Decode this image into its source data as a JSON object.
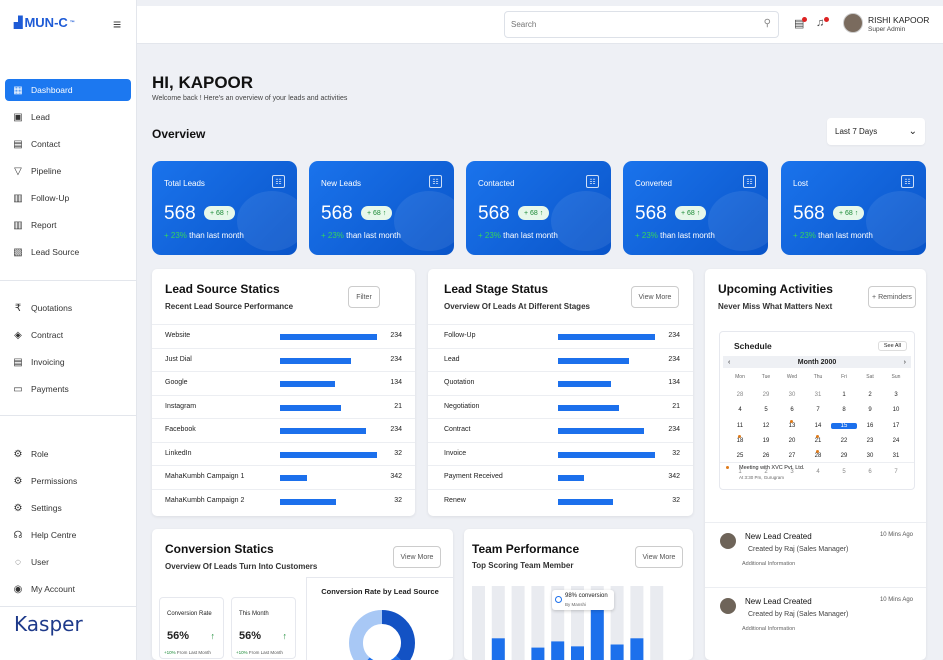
{
  "app": {
    "logo": "MUN-C",
    "logo_tm": "™"
  },
  "sidebar": {
    "groups": [
      [
        {
          "label": "Dashboard",
          "icon": "grid-icon"
        },
        {
          "label": "Lead",
          "icon": "contact-card-icon"
        },
        {
          "label": "Contact",
          "icon": "contact-book-icon"
        },
        {
          "label": "Pipeline",
          "icon": "filter-icon"
        },
        {
          "label": "Follow-Up",
          "icon": "clipboard-icon"
        },
        {
          "label": "Report",
          "icon": "chart-icon"
        },
        {
          "label": "Lead Source",
          "icon": "form-icon"
        }
      ],
      [
        {
          "label": "Quotations",
          "icon": "rupee-icon"
        },
        {
          "label": "Contract",
          "icon": "handshake-icon"
        },
        {
          "label": "Invoicing",
          "icon": "invoice-icon"
        },
        {
          "label": "Payments",
          "icon": "card-icon"
        }
      ],
      [
        {
          "label": "Role",
          "icon": "gear-icon"
        },
        {
          "label": "Permissions",
          "icon": "gear-icon"
        },
        {
          "label": "Settings",
          "icon": "gear-icon"
        },
        {
          "label": "Help Centre",
          "icon": "headset-icon"
        },
        {
          "label": "User",
          "icon": "shield-icon"
        },
        {
          "label": "My Account",
          "icon": "user-circle-icon"
        }
      ]
    ],
    "brand": "Kasper"
  },
  "header": {
    "search_placeholder": "Search",
    "user_name": "RISHI KAPOOR",
    "user_role": "Super Admin"
  },
  "page": {
    "greeting": "HI, KAPOOR",
    "welcome": "Welcome back ! Here's an overview of your leads and activities",
    "overview": "Overview",
    "range": "Last 7 Days"
  },
  "stats": [
    {
      "title": "Total Leads",
      "value": "568",
      "badge": "+ 68",
      "change": "+ 23%",
      "suffix": "than last month"
    },
    {
      "title": "New Leads",
      "value": "568",
      "badge": "+ 68",
      "change": "+ 23%",
      "suffix": "than last month"
    },
    {
      "title": "Contacted",
      "value": "568",
      "badge": "+ 68",
      "change": "+ 23%",
      "suffix": "than last month"
    },
    {
      "title": "Converted",
      "value": "568",
      "badge": "+ 68",
      "change": "+ 23%",
      "suffix": "than last month"
    },
    {
      "title": "Lost",
      "value": "568",
      "badge": "+ 68",
      "change": "+ 23%",
      "suffix": "than last month"
    }
  ],
  "lead_source": {
    "title": "Lead Source Statics",
    "subtitle": "Recent Lead Source Performance",
    "button": "Filter",
    "rows": [
      {
        "label": "Website",
        "value": "234",
        "fill": 0.95
      },
      {
        "label": "Just Dial",
        "value": "234",
        "fill": 0.7
      },
      {
        "label": "Google",
        "value": "134",
        "fill": 0.54
      },
      {
        "label": "Instagram",
        "value": "21",
        "fill": 0.6
      },
      {
        "label": "Facebook",
        "value": "234",
        "fill": 0.84
      },
      {
        "label": "LinkedIn",
        "value": "32",
        "fill": 0.95
      },
      {
        "label": "MahaKumbh Campaign 1",
        "value": "342",
        "fill": 0.26
      },
      {
        "label": "MahaKumbh Campaign 2",
        "value": "32",
        "fill": 0.55
      }
    ]
  },
  "lead_stage": {
    "title": "Lead Stage Status",
    "subtitle": "Overview Of Leads At Different Stages",
    "button": "View More",
    "rows": [
      {
        "label": "Follow-Up",
        "value": "234",
        "fill": 0.95
      },
      {
        "label": "Lead",
        "value": "234",
        "fill": 0.7
      },
      {
        "label": "Quotation",
        "value": "134",
        "fill": 0.52
      },
      {
        "label": "Negotiation",
        "value": "21",
        "fill": 0.6
      },
      {
        "label": "Contract",
        "value": "234",
        "fill": 0.84
      },
      {
        "label": "Invoice",
        "value": "32",
        "fill": 0.95
      },
      {
        "label": "Payment Received",
        "value": "342",
        "fill": 0.25
      },
      {
        "label": "Renew",
        "value": "32",
        "fill": 0.54
      }
    ]
  },
  "upcoming": {
    "title": "Upcoming Activities",
    "subtitle": "Never Miss What Matters Next",
    "button": "+ Reminders",
    "schedule": "Schedule",
    "see_all": "See All",
    "month": "Month 2000",
    "weekdays": [
      "Mon",
      "Tue",
      "Wed",
      "Thu",
      "Fri",
      "Sat",
      "Sun"
    ],
    "days": [
      [
        "28",
        "29",
        "30",
        "31",
        "1",
        "2",
        "3"
      ],
      [
        "4",
        "5",
        "6",
        "7",
        "8",
        "9",
        "10"
      ],
      [
        "11",
        "12",
        "13",
        "14",
        "15",
        "16",
        "17"
      ],
      [
        "18",
        "19",
        "20",
        "21",
        "22",
        "23",
        "24"
      ],
      [
        "25",
        "26",
        "27",
        "28",
        "29",
        "30",
        "31"
      ],
      [
        "1",
        "2",
        "3",
        "4",
        "5",
        "6",
        "7"
      ]
    ],
    "event": "Meeting with XVC Pvt. Ltd.",
    "event_time": "At 3:30 Pm, Gurugram",
    "activities": [
      {
        "title": "New Lead Created",
        "by": "Created by Raj (Sales Manager)",
        "info": "Additional Information",
        "time": "10 Mins Ago"
      },
      {
        "title": "New Lead Created",
        "by": "Created by Raj (Sales Manager)",
        "info": "Additional Information",
        "time": "10 Mins Ago"
      }
    ]
  },
  "conversion": {
    "title": "Conversion Statics",
    "subtitle": "Overview Of Leads Turn Into Customers",
    "button": "View More",
    "chart_title": "Conversion Rate by Lead Source",
    "minis": [
      {
        "label": "Conversion Rate",
        "value": "56%",
        "change": "+10%",
        "suffix": "From Last Month"
      },
      {
        "label": "This Month",
        "value": "56%",
        "change": "+10%",
        "suffix": "From Last Month"
      }
    ]
  },
  "team": {
    "title": "Team Performance",
    "subtitle": "Top Scoring Team Member",
    "button": "View More",
    "tooltip": "98% conversion",
    "tooltip_by": "By Manshi"
  },
  "chart_data": {
    "type": "bar",
    "values": [
      0,
      0.35,
      0,
      0.2,
      0.3,
      0.22,
      0.95,
      0.25,
      0.35,
      0
    ],
    "title": "Team Performance"
  }
}
